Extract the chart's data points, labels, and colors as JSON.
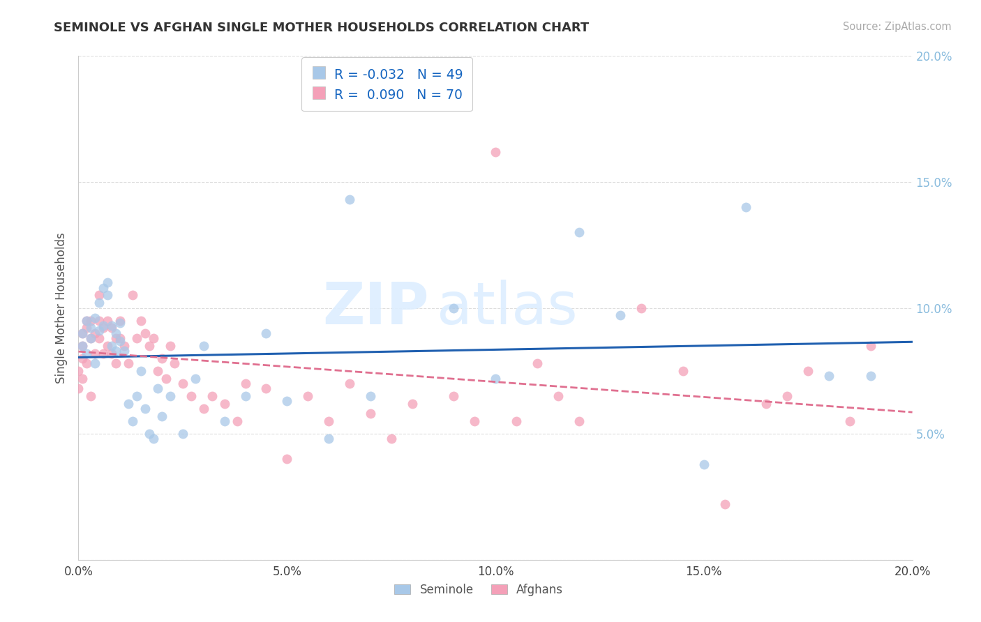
{
  "title": "SEMINOLE VS AFGHAN SINGLE MOTHER HOUSEHOLDS CORRELATION CHART",
  "source": "Source: ZipAtlas.com",
  "ylabel": "Single Mother Households",
  "xlim": [
    0.0,
    0.2
  ],
  "ylim": [
    0.0,
    0.2
  ],
  "xticks": [
    0.0,
    0.05,
    0.1,
    0.15,
    0.2
  ],
  "yticks": [
    0.0,
    0.05,
    0.1,
    0.15,
    0.2
  ],
  "xtick_labels": [
    "0.0%",
    "5.0%",
    "10.0%",
    "15.0%",
    "20.0%"
  ],
  "ytick_labels": [
    "",
    "5.0%",
    "10.0%",
    "15.0%",
    "20.0%"
  ],
  "legend_r1": "-0.032",
  "legend_n1": "49",
  "legend_r2": "0.090",
  "legend_n2": "70",
  "color_blue": "#A8C8E8",
  "color_pink": "#F4A0B8",
  "color_blue_line": "#2060B0",
  "color_pink_line": "#E07090",
  "watermark_zip": "ZIP",
  "watermark_atlas": "atlas",
  "seminole_x": [
    0.001,
    0.001,
    0.002,
    0.002,
    0.003,
    0.003,
    0.004,
    0.004,
    0.005,
    0.005,
    0.006,
    0.006,
    0.007,
    0.007,
    0.008,
    0.008,
    0.009,
    0.009,
    0.01,
    0.01,
    0.011,
    0.012,
    0.013,
    0.014,
    0.015,
    0.016,
    0.017,
    0.018,
    0.019,
    0.02,
    0.022,
    0.025,
    0.028,
    0.03,
    0.035,
    0.04,
    0.045,
    0.05,
    0.06,
    0.065,
    0.07,
    0.09,
    0.1,
    0.12,
    0.13,
    0.15,
    0.16,
    0.18,
    0.19
  ],
  "seminole_y": [
    0.09,
    0.085,
    0.095,
    0.082,
    0.092,
    0.088,
    0.096,
    0.078,
    0.091,
    0.102,
    0.108,
    0.093,
    0.105,
    0.11,
    0.093,
    0.085,
    0.09,
    0.083,
    0.087,
    0.094,
    0.083,
    0.062,
    0.055,
    0.065,
    0.075,
    0.06,
    0.05,
    0.048,
    0.068,
    0.057,
    0.065,
    0.05,
    0.072,
    0.085,
    0.055,
    0.065,
    0.09,
    0.063,
    0.048,
    0.143,
    0.065,
    0.1,
    0.072,
    0.13,
    0.097,
    0.038,
    0.14,
    0.073,
    0.073
  ],
  "afghan_x": [
    0.0,
    0.0,
    0.001,
    0.001,
    0.001,
    0.001,
    0.002,
    0.002,
    0.002,
    0.003,
    0.003,
    0.003,
    0.004,
    0.004,
    0.005,
    0.005,
    0.005,
    0.006,
    0.006,
    0.007,
    0.007,
    0.008,
    0.008,
    0.009,
    0.009,
    0.01,
    0.01,
    0.011,
    0.012,
    0.013,
    0.014,
    0.015,
    0.016,
    0.017,
    0.018,
    0.019,
    0.02,
    0.021,
    0.022,
    0.023,
    0.025,
    0.027,
    0.03,
    0.032,
    0.035,
    0.038,
    0.04,
    0.045,
    0.05,
    0.055,
    0.06,
    0.065,
    0.07,
    0.075,
    0.08,
    0.09,
    0.095,
    0.1,
    0.105,
    0.11,
    0.115,
    0.12,
    0.135,
    0.145,
    0.155,
    0.165,
    0.17,
    0.175,
    0.185,
    0.19
  ],
  "afghan_y": [
    0.075,
    0.068,
    0.072,
    0.08,
    0.085,
    0.09,
    0.078,
    0.092,
    0.095,
    0.065,
    0.088,
    0.095,
    0.082,
    0.09,
    0.088,
    0.095,
    0.105,
    0.082,
    0.092,
    0.085,
    0.095,
    0.082,
    0.092,
    0.078,
    0.088,
    0.088,
    0.095,
    0.085,
    0.078,
    0.105,
    0.088,
    0.095,
    0.09,
    0.085,
    0.088,
    0.075,
    0.08,
    0.072,
    0.085,
    0.078,
    0.07,
    0.065,
    0.06,
    0.065,
    0.062,
    0.055,
    0.07,
    0.068,
    0.04,
    0.065,
    0.055,
    0.07,
    0.058,
    0.048,
    0.062,
    0.065,
    0.055,
    0.162,
    0.055,
    0.078,
    0.065,
    0.055,
    0.1,
    0.075,
    0.022,
    0.062,
    0.065,
    0.075,
    0.055,
    0.085
  ]
}
